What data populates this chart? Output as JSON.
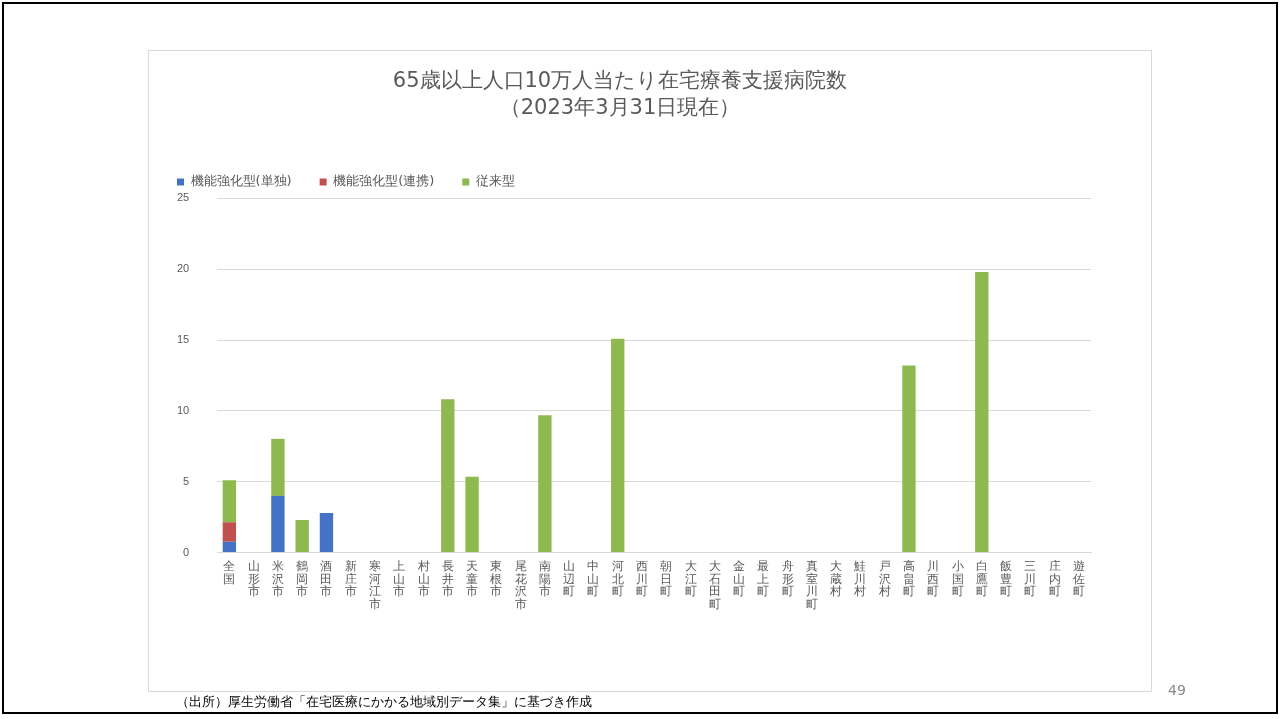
{
  "chart_data": {
    "type": "bar",
    "title": "65歳以上人口10万人当たり在宅療養支援病院数",
    "subtitle": "（2023年3月31日現在）",
    "categories": [
      "全国",
      "山形市",
      "米沢市",
      "鶴岡市",
      "酒田市",
      "新庄市",
      "寒河江市",
      "上山市",
      "村山市",
      "長井市",
      "天童市",
      "東根市",
      "尾花沢市",
      "南陽市",
      "山辺町",
      "中山町",
      "河北町",
      "西川町",
      "朝日町",
      "大江町",
      "大石田町",
      "金山町",
      "最上町",
      "舟形町",
      "真室川町",
      "大蔵村",
      "鮭川村",
      "戸沢村",
      "高畠町",
      "川西町",
      "小国町",
      "白鷹町",
      "飯豊町",
      "三川町",
      "庄内町",
      "遊佐町"
    ],
    "stacked": true,
    "series": [
      {
        "name": "機能強化型(単独)",
        "color": "#4472c4",
        "values": [
          0.77,
          0,
          4.0,
          0,
          2.8,
          0,
          0,
          0,
          0,
          0,
          0,
          0,
          0,
          0,
          0,
          0,
          0,
          0,
          0,
          0,
          0,
          0,
          0,
          0,
          0,
          0,
          0,
          0,
          0,
          0,
          0,
          0,
          0,
          0,
          0,
          0
        ]
      },
      {
        "name": "機能強化型(連携)",
        "color": "#c0504d",
        "values": [
          1.38,
          0,
          0,
          0,
          0,
          0,
          0,
          0,
          0,
          0,
          0,
          0,
          0,
          0,
          0,
          0,
          0,
          0,
          0,
          0,
          0,
          0,
          0,
          0,
          0,
          0,
          0,
          0,
          0,
          0,
          0,
          0,
          0,
          0,
          0,
          0
        ]
      },
      {
        "name": "従来型",
        "color": "#8db94e",
        "values": [
          2.95,
          0,
          4.03,
          2.3,
          0,
          0,
          0,
          0,
          0,
          10.83,
          5.35,
          0,
          0,
          9.7,
          0,
          0,
          15.1,
          0,
          0,
          0,
          0,
          0,
          0,
          0,
          0,
          0,
          0,
          0,
          13.2,
          0,
          0,
          19.8,
          0,
          0,
          0,
          0
        ]
      }
    ],
    "ylim": [
      0,
      25
    ],
    "yticks": [
      0,
      5,
      10,
      15,
      20,
      25
    ],
    "grid": "y",
    "legend": "top left",
    "annotations": [
      "（出所）厚生労働省「在宅医療にかかる地域別データ集」に基づき作成",
      "49"
    ]
  }
}
